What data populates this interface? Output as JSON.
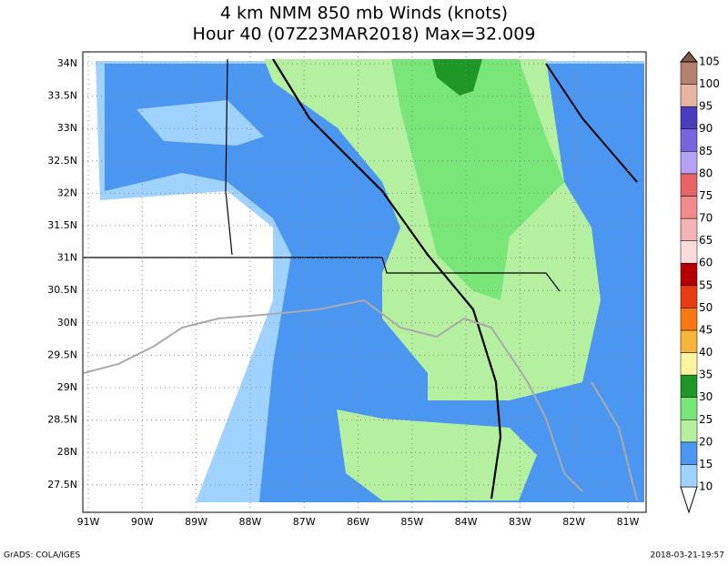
{
  "title": [
    "4 km NMM 850 mb Winds (knots)",
    "Hour 40 (07Z23MAR2018) Max=32.009"
  ],
  "lon_labels": [
    "91W",
    "90W",
    "89W",
    "88W",
    "87W",
    "86W",
    "85W",
    "84W",
    "83W",
    "82W",
    "81W"
  ],
  "lat_labels": [
    "34N",
    "33.5N",
    "33N",
    "32.5N",
    "32N",
    "31.5N",
    "31N",
    "30.5N",
    "30N",
    "29.5N",
    "29N",
    "28.5N",
    "28N",
    "27.5N"
  ],
  "colorbar": {
    "levels": [
      10,
      15,
      20,
      25,
      30,
      35,
      40,
      45,
      50,
      55,
      60,
      65,
      70,
      75,
      80,
      85,
      90,
      95,
      100,
      105
    ],
    "colors": [
      "#ffffff",
      "#a0d2ff",
      "#4a96f0",
      "#b4f0a0",
      "#78e678",
      "#1e9628",
      "#fff5a0",
      "#f5b43c",
      "#fa7814",
      "#e63c14",
      "#b40000",
      "#fadcdc",
      "#f5b4b4",
      "#f08c8c",
      "#e66464",
      "#b4a0f5",
      "#7864dc",
      "#4b3cbe",
      "#e6b4a0",
      "#b4826e",
      "#825a46"
    ]
  },
  "footer": {
    "left": "GrADS: COLA/IGES",
    "right": "2018-03-21-19:57"
  }
}
